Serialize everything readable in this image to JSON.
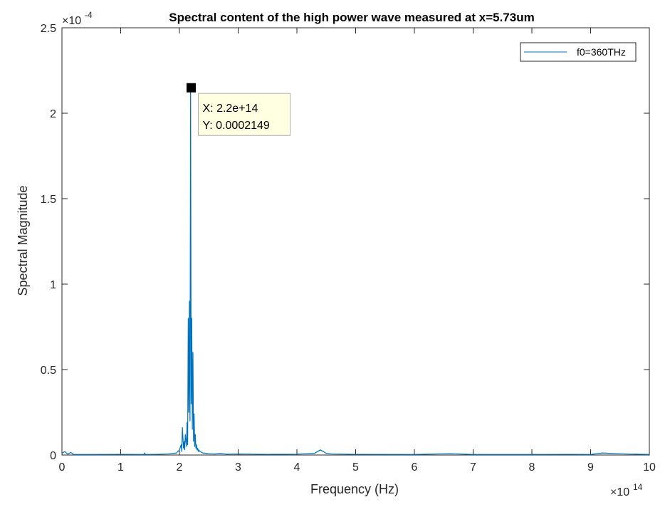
{
  "chart_data": {
    "type": "line",
    "title": "Spectral content of the high power wave measured at x=5.73um",
    "xlabel": "Frequency (Hz)",
    "ylabel": "Spectral Magnitude",
    "xlim": [
      0,
      10
    ],
    "ylim": [
      0,
      2.5
    ],
    "x_multiplier_base": "×10",
    "x_multiplier_exp": "14",
    "y_multiplier_base": "×10",
    "y_multiplier_exp": "-4",
    "xticks": [
      "0",
      "1",
      "2",
      "3",
      "4",
      "5",
      "6",
      "7",
      "8",
      "9",
      "10"
    ],
    "yticks": [
      "0",
      "0.5",
      "1",
      "1.5",
      "2",
      "2.5"
    ],
    "legend": {
      "entries": [
        "f0=360THz"
      ],
      "location": "top-right"
    },
    "grid": false,
    "series": [
      {
        "name": "f0=360THz",
        "color": "#0072BD",
        "x": [
          0,
          0.05,
          0.1,
          0.15,
          0.2,
          0.5,
          1.0,
          1.4,
          1.41,
          1.42,
          1.6,
          1.8,
          1.95,
          2.0,
          2.03,
          2.04,
          2.05,
          2.07,
          2.08,
          2.09,
          2.1,
          2.12,
          2.13,
          2.14,
          2.15,
          2.16,
          2.17,
          2.18,
          2.19,
          2.2,
          2.21,
          2.22,
          2.23,
          2.24,
          2.25,
          2.26,
          2.27,
          2.28,
          2.29,
          2.3,
          2.31,
          2.32,
          2.33,
          2.35,
          2.38,
          2.4,
          2.45,
          2.5,
          2.6,
          2.7,
          2.8,
          3.0,
          3.5,
          4.0,
          4.3,
          4.35,
          4.4,
          4.45,
          4.5,
          4.6,
          5.0,
          6.0,
          6.6,
          7.0,
          8.0,
          8.6,
          9.0,
          9.2,
          9.6,
          10.0
        ],
        "y": [
          0.01,
          0.02,
          0.005,
          0.015,
          0.003,
          0.003,
          0.004,
          0.003,
          0.012,
          0.003,
          0.004,
          0.006,
          0.012,
          0.03,
          0.06,
          0.02,
          0.16,
          0.04,
          0.08,
          0.03,
          0.12,
          0.05,
          0.19,
          0.06,
          0.8,
          0.25,
          0.9,
          0.2,
          2.149,
          0.3,
          0.8,
          0.15,
          0.6,
          0.08,
          0.24,
          0.05,
          0.12,
          0.04,
          0.06,
          0.03,
          0.04,
          0.02,
          0.03,
          0.02,
          0.015,
          0.012,
          0.01,
          0.008,
          0.006,
          0.01,
          0.005,
          0.006,
          0.004,
          0.005,
          0.01,
          0.02,
          0.03,
          0.02,
          0.01,
          0.006,
          0.004,
          0.003,
          0.008,
          0.003,
          0.003,
          0.004,
          0.003,
          0.012,
          0.006,
          0.003
        ]
      }
    ],
    "datatip": {
      "x_text": "X: 2.2e+14",
      "y_text": "Y: 0.0002149",
      "x": 2.2,
      "y": 2.149
    }
  }
}
